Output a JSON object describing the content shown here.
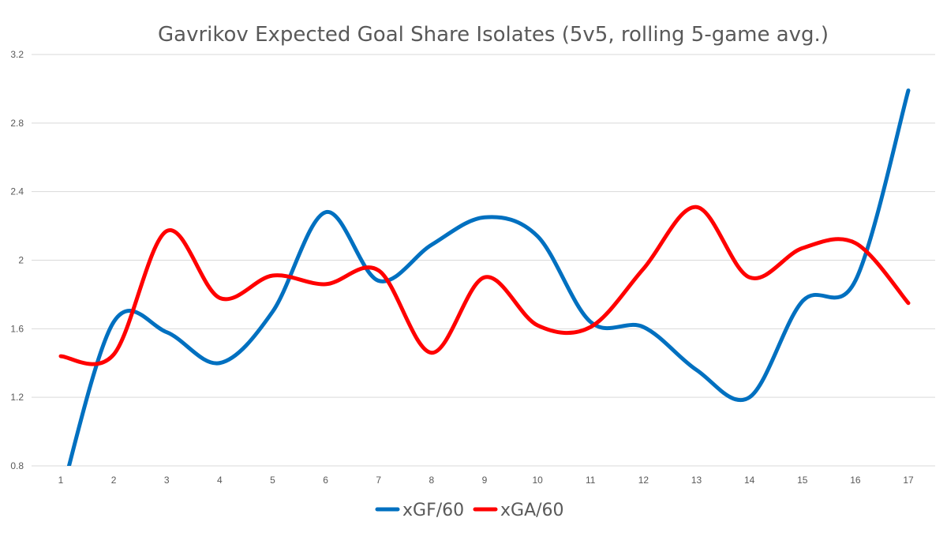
{
  "chart_data": {
    "type": "line",
    "title": "Gavrikov Expected Goal Share Isolates (5v5, rolling 5-game avg.)",
    "xlabel": "",
    "ylabel": "",
    "x": [
      1,
      2,
      3,
      4,
      5,
      6,
      7,
      8,
      9,
      10,
      11,
      12,
      13,
      14,
      15,
      16,
      17
    ],
    "ylim": [
      0.8,
      3.2
    ],
    "yticks": [
      "0.8",
      "1.2",
      "1.6",
      "2",
      "2.4",
      "2.8",
      "3.2"
    ],
    "ytick_values": [
      0.8,
      1.2,
      1.6,
      2.0,
      2.4,
      2.8,
      3.2
    ],
    "grid": true,
    "legend": "bottom",
    "series": [
      {
        "name": "xGF/60",
        "color": "#0070C0",
        "values": [
          0.62,
          1.64,
          1.58,
          1.4,
          1.7,
          2.28,
          1.88,
          2.09,
          2.25,
          2.14,
          1.64,
          1.61,
          1.36,
          1.2,
          1.76,
          1.88,
          2.99
        ]
      },
      {
        "name": "xGA/60",
        "color": "#FF0000",
        "values": [
          1.44,
          1.45,
          2.17,
          1.78,
          1.91,
          1.86,
          1.94,
          1.46,
          1.9,
          1.62,
          1.61,
          1.95,
          2.31,
          1.9,
          2.07,
          2.1,
          1.75
        ]
      }
    ]
  }
}
